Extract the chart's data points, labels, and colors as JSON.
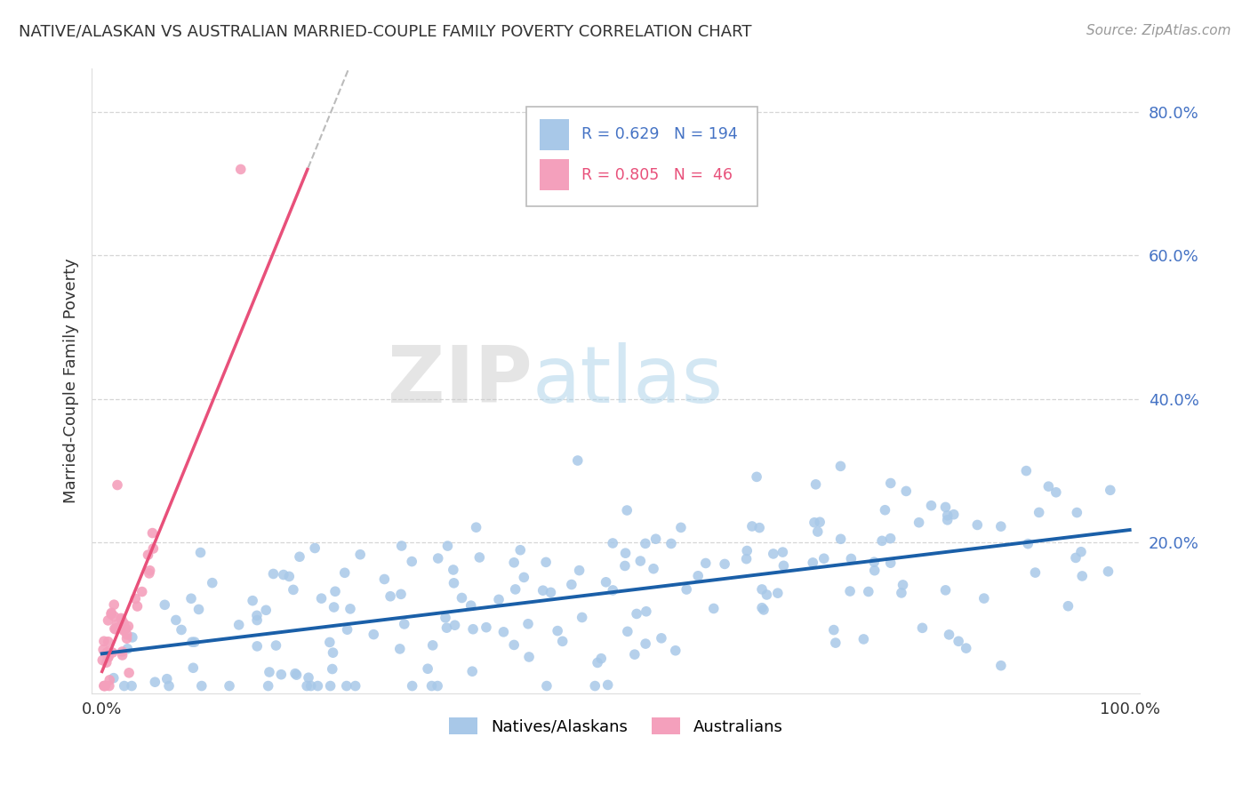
{
  "title": "NATIVE/ALASKAN VS AUSTRALIAN MARRIED-COUPLE FAMILY POVERTY CORRELATION CHART",
  "source_text": "Source: ZipAtlas.com",
  "ylabel": "Married-Couple Family Poverty",
  "legend_entry1_r": "0.629",
  "legend_entry1_n": "194",
  "legend_entry2_r": "0.805",
  "legend_entry2_n": "46",
  "blue_color": "#a8c8e8",
  "pink_color": "#f4a0bc",
  "blue_line_color": "#1a5fa8",
  "pink_line_color": "#e8507a",
  "blue_r": 0.629,
  "blue_n": 194,
  "pink_r": 0.805,
  "pink_n": 46,
  "watermark_zip": "ZIP",
  "watermark_atlas": "atlas",
  "background_color": "#ffffff",
  "grid_color": "#cccccc"
}
